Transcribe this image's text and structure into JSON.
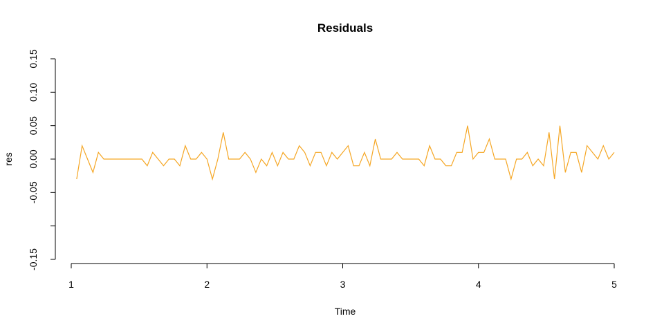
{
  "chart_data": {
    "type": "line",
    "title": "Residuals",
    "xlabel": "Time",
    "ylabel": "res",
    "xlim": [
      1,
      5
    ],
    "ylim": [
      -0.15,
      0.15
    ],
    "x_ticks": [
      "1",
      "2",
      "3",
      "4",
      "5"
    ],
    "y_ticks": [
      "-0.15",
      "-0.10",
      "-0.05",
      "0.00",
      "0.05",
      "0.10",
      "0.15"
    ],
    "y_tick_labels_shown": [
      "-0.15",
      "",
      "-0.05",
      "0.00",
      "0.05",
      "0.10",
      "0.15"
    ],
    "grid": false,
    "color": "#f5a623",
    "x_start": 1.04,
    "x_step": 0.04,
    "series": [
      {
        "values": [
          -0.03,
          0.02,
          0.0,
          -0.02,
          0.01,
          0.0,
          0.0,
          0.0,
          0.0,
          0.0,
          0.0,
          0.0,
          0.0,
          -0.01,
          0.01,
          0.0,
          -0.01,
          0.0,
          0.0,
          -0.01,
          0.02,
          0.0,
          0.0,
          0.01,
          0.0,
          -0.03,
          0.0,
          0.04,
          0.0,
          0.0,
          0.0,
          0.01,
          0.0,
          -0.02,
          0.0,
          -0.01,
          0.01,
          -0.01,
          0.01,
          0.0,
          0.0,
          0.02,
          0.01,
          -0.01,
          0.01,
          0.01,
          -0.01,
          0.01,
          0.0,
          0.01,
          0.02,
          -0.01,
          -0.01,
          0.01,
          -0.01,
          0.03,
          0.0,
          0.0,
          0.0,
          0.01,
          0.0,
          0.0,
          0.0,
          0.0,
          -0.01,
          0.02,
          0.0,
          0.0,
          -0.01,
          -0.01,
          0.01,
          0.01,
          0.05,
          0.0,
          0.01,
          0.01,
          0.03,
          0.0,
          0.0,
          0.0,
          -0.03,
          0.0,
          0.0,
          0.01,
          -0.01,
          0.0,
          -0.01,
          0.04,
          -0.03,
          0.05,
          -0.02,
          0.01,
          0.01,
          -0.02,
          0.02,
          0.01,
          0.0,
          0.02,
          0.0,
          0.01
        ]
      }
    ]
  }
}
